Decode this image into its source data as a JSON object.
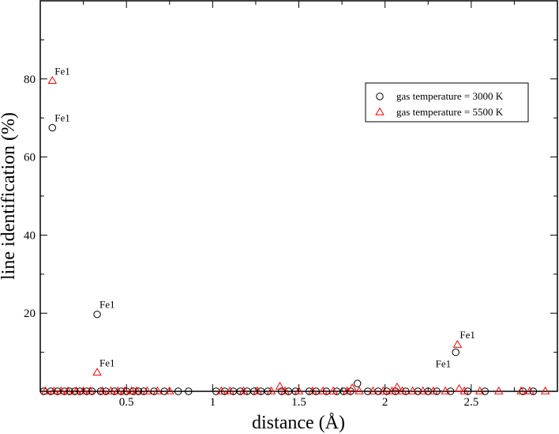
{
  "chart_data": {
    "type": "scatter",
    "xlabel": "distance (Å)",
    "ylabel": "line identification (%)",
    "xlim": [
      0.0,
      3.0
    ],
    "ylim": [
      0,
      100
    ],
    "x_ticks": [
      0.5,
      1,
      1.5,
      2,
      2.5
    ],
    "x_tick_labels": [
      "0.5",
      "1",
      "1.5",
      "2",
      "2.5"
    ],
    "y_ticks": [
      20,
      40,
      60,
      80
    ],
    "y_tick_labels": [
      "20",
      "40",
      "60",
      "80"
    ],
    "grid": false,
    "legend_position": "top-right",
    "series": [
      {
        "name": "gas temperature = 3000 K",
        "marker": "circle",
        "color": "#000000",
        "points": [
          [
            0.07,
            67.5
          ],
          [
            0.33,
            19.7
          ],
          [
            1.84,
            2.0
          ],
          [
            2.41,
            10.0
          ],
          [
            0.02,
            0
          ],
          [
            0.06,
            0
          ],
          [
            0.1,
            0
          ],
          [
            0.14,
            0
          ],
          [
            0.17,
            0
          ],
          [
            0.2,
            0
          ],
          [
            0.23,
            0
          ],
          [
            0.27,
            0
          ],
          [
            0.3,
            0
          ],
          [
            0.35,
            0
          ],
          [
            0.38,
            0
          ],
          [
            0.43,
            0
          ],
          [
            0.47,
            0
          ],
          [
            0.5,
            0
          ],
          [
            0.54,
            0
          ],
          [
            0.57,
            0
          ],
          [
            0.6,
            0
          ],
          [
            0.66,
            0
          ],
          [
            0.72,
            0
          ],
          [
            0.8,
            0
          ],
          [
            0.86,
            0
          ],
          [
            1.02,
            0
          ],
          [
            1.07,
            0
          ],
          [
            1.12,
            0
          ],
          [
            1.16,
            0
          ],
          [
            1.2,
            0
          ],
          [
            1.24,
            0
          ],
          [
            1.28,
            0
          ],
          [
            1.32,
            0
          ],
          [
            1.4,
            0
          ],
          [
            1.44,
            0
          ],
          [
            1.48,
            0
          ],
          [
            1.56,
            0
          ],
          [
            1.6,
            0
          ],
          [
            1.66,
            0
          ],
          [
            1.72,
            0
          ],
          [
            1.76,
            0
          ],
          [
            1.8,
            0
          ],
          [
            1.9,
            0
          ],
          [
            1.96,
            0
          ],
          [
            2.01,
            0
          ],
          [
            2.06,
            0
          ],
          [
            2.12,
            0
          ],
          [
            2.19,
            0
          ],
          [
            2.25,
            0
          ],
          [
            2.3,
            0
          ],
          [
            2.38,
            0
          ],
          [
            2.48,
            0
          ],
          [
            2.58,
            0
          ],
          [
            2.8,
            0
          ],
          [
            2.86,
            0
          ]
        ]
      },
      {
        "name": "gas temperature = 5500 K",
        "marker": "triangle",
        "color": "#ff0000",
        "points": [
          [
            0.07,
            79.5
          ],
          [
            0.33,
            4.8
          ],
          [
            2.42,
            11.9
          ],
          [
            1.39,
            1.2
          ],
          [
            2.07,
            1.0
          ],
          [
            1.81,
            0.8
          ],
          [
            2.43,
            0.6
          ],
          [
            0.03,
            0
          ],
          [
            0.08,
            0
          ],
          [
            0.12,
            0
          ],
          [
            0.16,
            0
          ],
          [
            0.21,
            0
          ],
          [
            0.25,
            0
          ],
          [
            0.29,
            0
          ],
          [
            0.36,
            0
          ],
          [
            0.41,
            0
          ],
          [
            0.45,
            0
          ],
          [
            0.49,
            0
          ],
          [
            0.53,
            0
          ],
          [
            0.56,
            0
          ],
          [
            0.62,
            0
          ],
          [
            0.68,
            0
          ],
          [
            0.75,
            0
          ],
          [
            1.05,
            0
          ],
          [
            1.1,
            0
          ],
          [
            1.18,
            0
          ],
          [
            1.26,
            0
          ],
          [
            1.34,
            0
          ],
          [
            1.42,
            0
          ],
          [
            1.5,
            0
          ],
          [
            1.58,
            0
          ],
          [
            1.64,
            0
          ],
          [
            1.7,
            0
          ],
          [
            1.78,
            0
          ],
          [
            1.85,
            0
          ],
          [
            1.93,
            0
          ],
          [
            1.99,
            0
          ],
          [
            2.04,
            0
          ],
          [
            2.1,
            0
          ],
          [
            2.16,
            0
          ],
          [
            2.22,
            0
          ],
          [
            2.28,
            0
          ],
          [
            2.35,
            0
          ],
          [
            2.46,
            0
          ],
          [
            2.55,
            0
          ],
          [
            2.66,
            0
          ],
          [
            2.79,
            0
          ],
          [
            2.84,
            0
          ],
          [
            2.93,
            0
          ]
        ]
      }
    ],
    "annotations": [
      {
        "text": "Fe1",
        "x": 0.07,
        "y": 79.5,
        "anchor": "upper-right"
      },
      {
        "text": "Fe1",
        "x": 0.07,
        "y": 67.5,
        "anchor": "upper-right"
      },
      {
        "text": "Fe1",
        "x": 0.33,
        "y": 19.7,
        "anchor": "upper-right"
      },
      {
        "text": "Fe1",
        "x": 0.33,
        "y": 4.8,
        "anchor": "upper-right"
      },
      {
        "text": "Fe1",
        "x": 2.42,
        "y": 11.9,
        "anchor": "upper-right"
      },
      {
        "text": "Fe1",
        "x": 2.41,
        "y": 10.0,
        "anchor": "lower-left"
      }
    ]
  }
}
